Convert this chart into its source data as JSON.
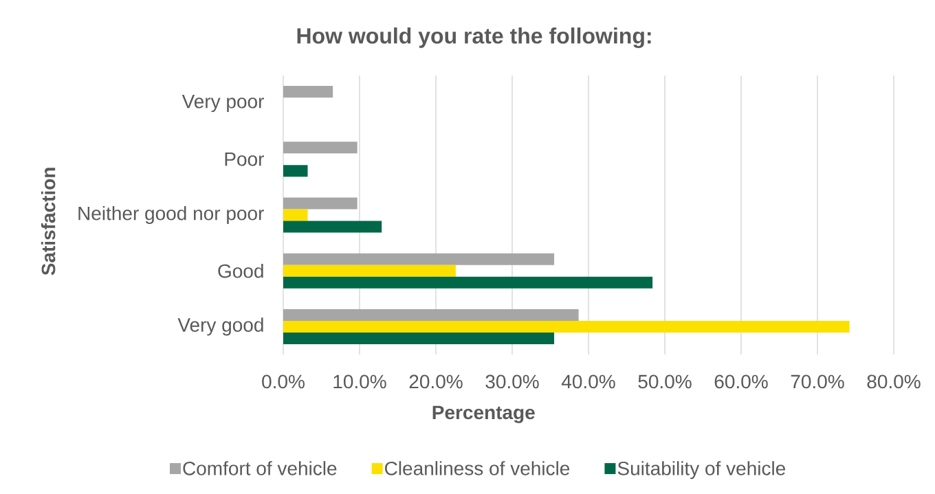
{
  "chart_data": {
    "type": "bar",
    "orientation": "horizontal",
    "title": "How would you rate the following:",
    "xlabel": "Percentage",
    "ylabel": "Satisfaction",
    "categories": [
      "Very poor",
      "Poor",
      "Neither good nor poor",
      "Good",
      "Very good"
    ],
    "series": [
      {
        "name": "Comfort of vehicle",
        "color": "#a6a6a6",
        "values": [
          6.5,
          9.7,
          9.7,
          35.5,
          38.7
        ]
      },
      {
        "name": "Cleanliness of vehicle",
        "color": "#fbe000",
        "values": [
          0,
          0,
          3.2,
          22.6,
          74.2
        ]
      },
      {
        "name": "Suitability of vehicle",
        "color": "#006848",
        "values": [
          0,
          3.2,
          12.9,
          48.4,
          35.5
        ]
      }
    ],
    "xlim": [
      0,
      80
    ],
    "xticks": [
      {
        "value": 0,
        "label": "0.0%"
      },
      {
        "value": 10,
        "label": "10.0%"
      },
      {
        "value": 20,
        "label": "20.0%"
      },
      {
        "value": 30,
        "label": "30.0%"
      },
      {
        "value": 40,
        "label": "40.0%"
      },
      {
        "value": 50,
        "label": "50.0%"
      },
      {
        "value": 60,
        "label": "60.0%"
      },
      {
        "value": 70,
        "label": "70.0%"
      },
      {
        "value": 80,
        "label": "80.0%"
      }
    ],
    "grid": "x",
    "legend": "bottom"
  }
}
